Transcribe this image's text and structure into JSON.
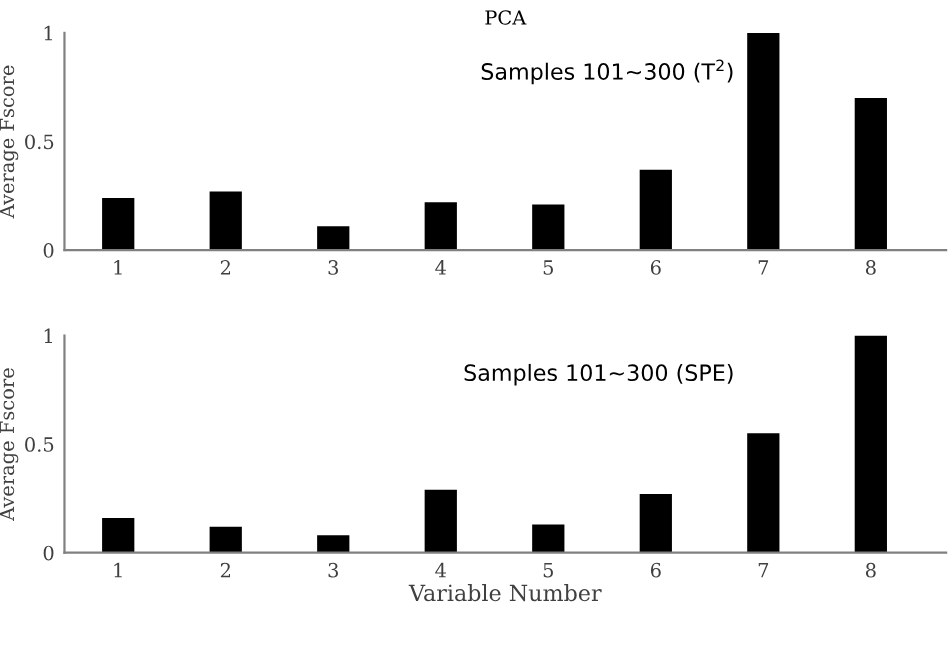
{
  "chart_data": [
    {
      "type": "bar",
      "title": "PCA",
      "ylabel": "Average Fscore",
      "categories": [
        "1",
        "2",
        "3",
        "4",
        "5",
        "6",
        "7",
        "8"
      ],
      "series": [
        {
          "color": "#000000",
          "values": [
            0.24,
            0.27,
            0.11,
            0.22,
            0.21,
            0.37,
            1.0,
            0.7
          ]
        }
      ],
      "ylim": [
        0,
        1
      ],
      "yticks": [
        0,
        0.5,
        1
      ],
      "grid": false,
      "legend": false,
      "annotations": [
        "Samples 101~300 (T$^{2}$)"
      ]
    },
    {
      "type": "bar",
      "xlabel": "Variable Number",
      "ylabel": "Average Fscore",
      "categories": [
        "1",
        "2",
        "3",
        "4",
        "5",
        "6",
        "7",
        "8"
      ],
      "series": [
        {
          "color": "#000000",
          "values": [
            0.16,
            0.12,
            0.08,
            0.29,
            0.13,
            0.27,
            0.55,
            1.0
          ]
        }
      ],
      "ylim": [
        0,
        1
      ],
      "yticks": [
        0,
        0.5,
        1
      ],
      "grid": false,
      "legend": false,
      "annotations": [
        "Samples 101~300 (SPE)"
      ]
    }
  ]
}
